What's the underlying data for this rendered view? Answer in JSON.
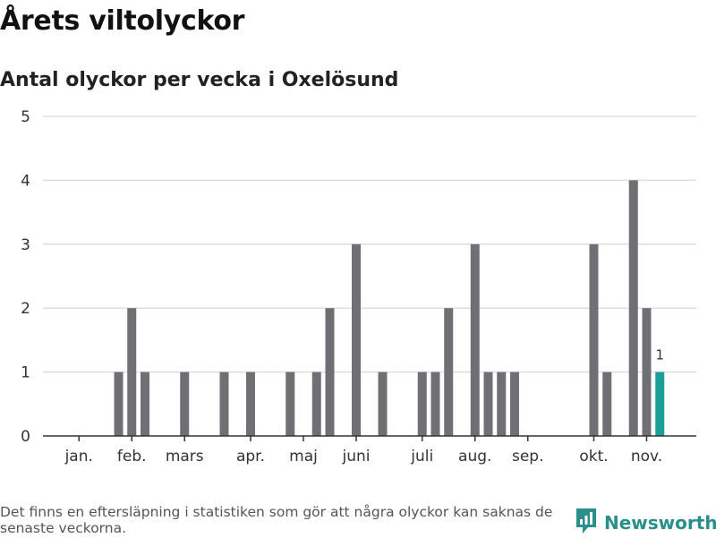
{
  "page": {
    "title": "Årets viltolyckor",
    "subtitle": "Antal olyckor per vecka i Oxelösund",
    "footnote": "Det finns en eftersläpning i statistiken som gör att några olyckor kan saknas de senaste veckorna.",
    "brand": "Newsworthy",
    "brand_icon": "newsworthy-logo-icon"
  },
  "colors": {
    "bar": "#707074",
    "highlight": "#1a9e96",
    "grid": "#dddddd",
    "axis": "#333333",
    "brand": "#2a8f8a"
  },
  "chart_data": {
    "type": "bar",
    "title": "Antal olyckor per vecka i Oxelösund",
    "xlabel": "",
    "ylabel": "",
    "ylim": [
      0,
      5
    ],
    "yticks": [
      0,
      1,
      2,
      3,
      4,
      5
    ],
    "x_month_labels": [
      {
        "label": "jan.",
        "week": 2
      },
      {
        "label": "feb.",
        "week": 6
      },
      {
        "label": "mars",
        "week": 10
      },
      {
        "label": "apr.",
        "week": 15
      },
      {
        "label": "maj",
        "week": 19
      },
      {
        "label": "juni",
        "week": 23
      },
      {
        "label": "juli",
        "week": 28
      },
      {
        "label": "aug.",
        "week": 32
      },
      {
        "label": "sep.",
        "week": 36
      },
      {
        "label": "okt.",
        "week": 41
      },
      {
        "label": "nov.",
        "week": 45
      }
    ],
    "weeks": [
      1,
      2,
      3,
      4,
      5,
      6,
      7,
      8,
      9,
      10,
      11,
      12,
      13,
      14,
      15,
      16,
      17,
      18,
      19,
      20,
      21,
      22,
      23,
      24,
      25,
      26,
      27,
      28,
      29,
      30,
      31,
      32,
      33,
      34,
      35,
      36,
      37,
      38,
      39,
      40,
      41,
      42,
      43,
      44,
      45,
      46
    ],
    "values": [
      0,
      0,
      0,
      0,
      1,
      2,
      1,
      0,
      0,
      1,
      0,
      0,
      1,
      0,
      1,
      0,
      0,
      1,
      0,
      1,
      2,
      0,
      3,
      0,
      1,
      0,
      0,
      1,
      1,
      2,
      0,
      3,
      1,
      1,
      1,
      0,
      0,
      0,
      0,
      0,
      3,
      1,
      0,
      4,
      2,
      1
    ],
    "highlight_index": 45,
    "highlight_label": "1"
  }
}
